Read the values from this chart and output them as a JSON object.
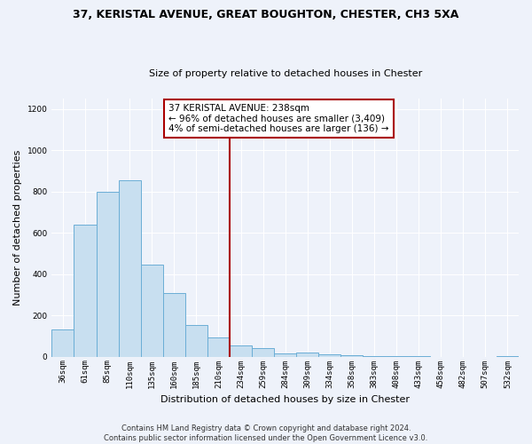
{
  "title": "37, KERISTAL AVENUE, GREAT BOUGHTON, CHESTER, CH3 5XA",
  "subtitle": "Size of property relative to detached houses in Chester",
  "xlabel": "Distribution of detached houses by size in Chester",
  "ylabel": "Number of detached properties",
  "bin_labels": [
    "36sqm",
    "61sqm",
    "85sqm",
    "110sqm",
    "135sqm",
    "160sqm",
    "185sqm",
    "210sqm",
    "234sqm",
    "259sqm",
    "284sqm",
    "309sqm",
    "334sqm",
    "358sqm",
    "383sqm",
    "408sqm",
    "433sqm",
    "458sqm",
    "482sqm",
    "507sqm",
    "532sqm"
  ],
  "bar_heights": [
    130,
    640,
    800,
    855,
    445,
    310,
    155,
    95,
    55,
    40,
    15,
    20,
    10,
    5,
    2,
    1,
    1,
    0,
    0,
    0,
    3
  ],
  "bar_color": "#c8dff0",
  "bar_edge_color": "#6baed6",
  "vline_color": "#aa0000",
  "ylim": [
    0,
    1250
  ],
  "yticks": [
    0,
    200,
    400,
    600,
    800,
    1000,
    1200
  ],
  "annotation_title": "37 KERISTAL AVENUE: 238sqm",
  "annotation_line1": "← 96% of detached houses are smaller (3,409)",
  "annotation_line2": "4% of semi-detached houses are larger (136) →",
  "annotation_box_color": "#ffffff",
  "annotation_box_edge": "#aa0000",
  "footer_line1": "Contains HM Land Registry data © Crown copyright and database right 2024.",
  "footer_line2": "Contains public sector information licensed under the Open Government Licence v3.0.",
  "background_color": "#eef2fa",
  "grid_color": "#ffffff",
  "title_fontsize": 9,
  "subtitle_fontsize": 8,
  "ylabel_fontsize": 8,
  "xlabel_fontsize": 8,
  "tick_fontsize": 6.5,
  "ann_fontsize": 7.5,
  "footer_fontsize": 6
}
